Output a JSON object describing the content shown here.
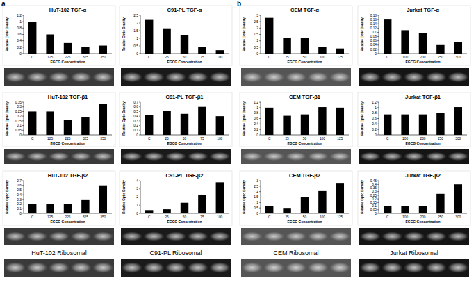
{
  "panel_labels": [
    "a",
    "b"
  ],
  "ribosomal_labels": [
    "HuT-102 Ribosomal",
    "C91-PL Ribosomal",
    "CEM Ribosomal",
    "Jurkat Ribosomal"
  ],
  "chart_data": [
    {
      "type": "bar",
      "title": "HuT-102 TGF-α",
      "x_label": "EGCG Concentration",
      "y_label": "Relative Optic Density",
      "color": "#000000",
      "categories": [
        "C",
        "125",
        "225",
        "325",
        "350"
      ],
      "values": [
        1.0,
        0.6,
        0.33,
        0.2,
        0.25
      ],
      "ylim": [
        0,
        1.2
      ],
      "yticks": [
        0,
        0.2,
        0.4,
        0.6,
        0.8,
        1,
        1.2
      ]
    },
    {
      "type": "bar",
      "title": "C91-PL TGF-α",
      "x_label": "EGCG Concentration",
      "y_label": "Relative Optic Density",
      "color": "#000000",
      "categories": [
        "C",
        "25",
        "50",
        "75",
        "100"
      ],
      "values": [
        2.2,
        1.65,
        1.2,
        0.42,
        0.22
      ],
      "ylim": [
        0,
        2.5
      ],
      "yticks": [
        0,
        0.5,
        1,
        1.5,
        2,
        2.5
      ]
    },
    {
      "type": "bar",
      "title": "HuT-102 TGF-β1",
      "x_label": "EGCG Concentration",
      "y_label": "Relative Optic Density",
      "color": "#000000",
      "categories": [
        "C",
        "125",
        "225",
        "325",
        "350"
      ],
      "values": [
        0.25,
        0.25,
        0.16,
        0.19,
        0.33
      ],
      "ylim": [
        0,
        0.35
      ],
      "yticks": [
        0,
        0.05,
        0.1,
        0.15,
        0.2,
        0.25,
        0.3,
        0.35
      ]
    },
    {
      "type": "bar",
      "title": "C91-PL TGF-β1",
      "x_label": "EGCG Concentration",
      "y_label": "Relative Optic Density",
      "color": "#000000",
      "categories": [
        "C",
        "25",
        "50",
        "75",
        "100"
      ],
      "values": [
        0.42,
        0.52,
        0.45,
        0.6,
        0.4
      ],
      "ylim": [
        0,
        0.7
      ],
      "yticks": [
        0,
        0.1,
        0.2,
        0.3,
        0.4,
        0.5,
        0.6,
        0.7
      ]
    },
    {
      "type": "bar",
      "title": "HuT-102 TGF-β2",
      "x_label": "EGCG Concentration",
      "y_label": "Relative Optic Density",
      "color": "#000000",
      "categories": [
        "C",
        "125",
        "225",
        "325",
        "350"
      ],
      "values": [
        0.2,
        0.2,
        0.2,
        0.3,
        0.6
      ],
      "ylim": [
        0,
        0.7
      ],
      "yticks": [
        0,
        0.1,
        0.2,
        0.3,
        0.4,
        0.5,
        0.6,
        0.7
      ]
    },
    {
      "type": "bar",
      "title": "C91-PL TGF-β2",
      "x_label": "EGCG Concentration",
      "y_label": "Relative Optic Density",
      "color": "#000000",
      "categories": [
        "C",
        "25",
        "50",
        "75",
        "100"
      ],
      "values": [
        0.4,
        0.5,
        1.3,
        2.3,
        3.8
      ],
      "ylim": [
        0,
        4
      ],
      "yticks": [
        0,
        1,
        2,
        3,
        4
      ]
    },
    {
      "type": "bar",
      "title": "CEM TGF-α",
      "x_label": "EGCG Concentration",
      "y_label": "Relative Optic Density",
      "color": "#000000",
      "categories": [
        "C",
        "25",
        "50",
        "100",
        "125"
      ],
      "values": [
        2.8,
        1.2,
        1.2,
        0.5,
        0.4
      ],
      "ylim": [
        0,
        3
      ],
      "yticks": [
        0,
        0.5,
        1,
        1.5,
        2,
        2.5,
        3
      ]
    },
    {
      "type": "bar",
      "title": "Jurkat TGF-α",
      "x_label": "EGCG Concentration",
      "y_label": "Relative Optic Density",
      "color": "#000000",
      "categories": [
        "C",
        "100",
        "200",
        "250",
        "300"
      ],
      "values": [
        0.16,
        0.11,
        0.095,
        0.04,
        0.055
      ],
      "ylim": [
        0,
        0.18
      ],
      "yticks": [
        0,
        0.02,
        0.04,
        0.06,
        0.08,
        0.1,
        0.12,
        0.14,
        0.16,
        0.18
      ]
    },
    {
      "type": "bar",
      "title": "CEM TGF-β1",
      "x_label": "EGCG Concentration",
      "y_label": "Relative Optic Density",
      "color": "#000000",
      "categories": [
        "C",
        "25",
        "50",
        "100",
        "125"
      ],
      "values": [
        1.0,
        0.7,
        0.75,
        1.02,
        1.0
      ],
      "ylim": [
        0,
        1.2
      ],
      "yticks": [
        0,
        0.2,
        0.4,
        0.6,
        0.8,
        1,
        1.2
      ]
    },
    {
      "type": "bar",
      "title": "Jurkat TGF-β1",
      "x_label": "EGCG Concentration",
      "y_label": "Relative Optic Density",
      "color": "#000000",
      "categories": [
        "C",
        "100",
        "200",
        "250",
        "300"
      ],
      "values": [
        0.75,
        0.75,
        0.75,
        0.8,
        1.02
      ],
      "ylim": [
        0,
        1.2
      ],
      "yticks": [
        0,
        0.2,
        0.4,
        0.6,
        0.8,
        1,
        1.2
      ]
    },
    {
      "type": "bar",
      "title": "CEM TGF-β2",
      "x_label": "EGCG Concentration",
      "y_label": "Relative Optic Density",
      "color": "#000000",
      "categories": [
        "C",
        "25",
        "50",
        "100",
        "125"
      ],
      "values": [
        0.65,
        0.5,
        1.5,
        2.05,
        2.8
      ],
      "ylim": [
        0,
        3
      ],
      "yticks": [
        0,
        0.5,
        1,
        1.5,
        2,
        2.5,
        3
      ]
    },
    {
      "type": "bar",
      "title": "Jurkat TGF-β2",
      "x_label": "EGCG Concentration",
      "y_label": "Relative Optic Density",
      "color": "#000000",
      "categories": [
        "C",
        "100",
        "200",
        "250",
        "300"
      ],
      "values": [
        0.1,
        0.1,
        0.1,
        0.27,
        0.4
      ],
      "ylim": [
        0,
        0.45
      ],
      "yticks": [
        0,
        0.05,
        0.1,
        0.15,
        0.2,
        0.25,
        0.3,
        0.35,
        0.4,
        0.45
      ]
    }
  ]
}
